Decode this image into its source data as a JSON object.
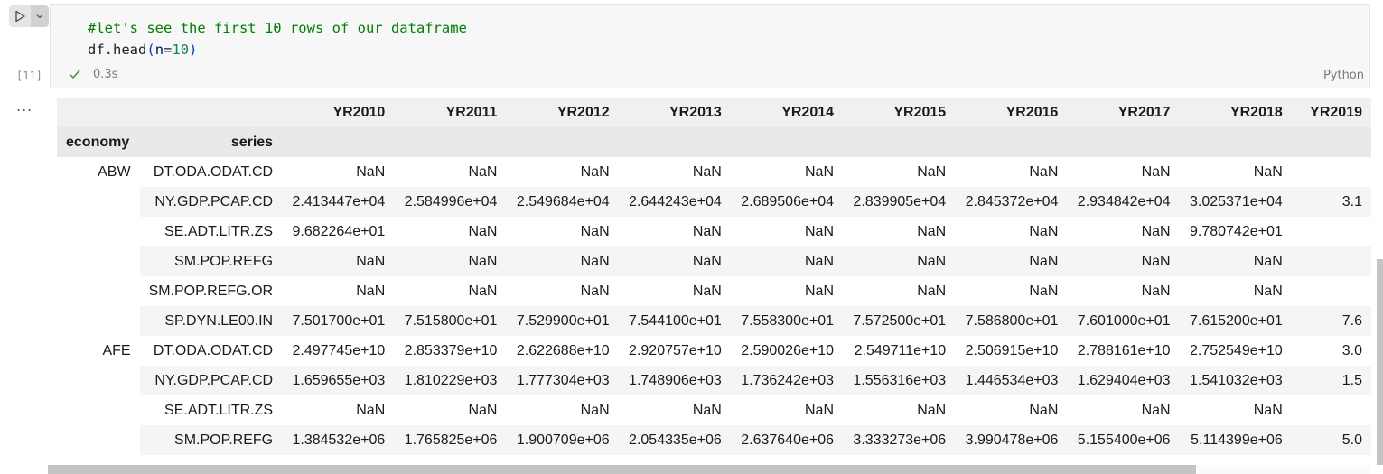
{
  "cell": {
    "execution_count": "[11]",
    "code": {
      "comment": "#let's see the first 10 rows of our dataframe",
      "obj": "df",
      "dot": ".",
      "method": "head",
      "open_paren": "(",
      "param": "n",
      "equals": "=",
      "arg": "10",
      "close_paren": ")"
    },
    "status_time": "0.3s",
    "language": "Python",
    "run_icon": "play-icon",
    "menu_icon": "chevron-down-icon",
    "status_icon": "check-icon"
  },
  "output": {
    "more_label": "...",
    "columns": [
      "YR2010",
      "YR2011",
      "YR2012",
      "YR2013",
      "YR2014",
      "YR2015",
      "YR2016",
      "YR2017",
      "YR2018",
      "YR2019"
    ],
    "index_names": [
      "economy",
      "series"
    ],
    "rows": [
      {
        "economy": "ABW",
        "series": "DT.ODA.ODAT.CD",
        "values": [
          "NaN",
          "NaN",
          "NaN",
          "NaN",
          "NaN",
          "NaN",
          "NaN",
          "NaN",
          "NaN",
          ""
        ]
      },
      {
        "economy": "",
        "series": "NY.GDP.PCAP.CD",
        "values": [
          "2.413447e+04",
          "2.584996e+04",
          "2.549684e+04",
          "2.644243e+04",
          "2.689506e+04",
          "2.839905e+04",
          "2.845372e+04",
          "2.934842e+04",
          "3.025371e+04",
          "3.1"
        ]
      },
      {
        "economy": "",
        "series": "SE.ADT.LITR.ZS",
        "values": [
          "9.682264e+01",
          "NaN",
          "NaN",
          "NaN",
          "NaN",
          "NaN",
          "NaN",
          "NaN",
          "9.780742e+01",
          ""
        ]
      },
      {
        "economy": "",
        "series": "SM.POP.REFG",
        "values": [
          "NaN",
          "NaN",
          "NaN",
          "NaN",
          "NaN",
          "NaN",
          "NaN",
          "NaN",
          "NaN",
          ""
        ]
      },
      {
        "economy": "",
        "series": "SM.POP.REFG.OR",
        "values": [
          "NaN",
          "NaN",
          "NaN",
          "NaN",
          "NaN",
          "NaN",
          "NaN",
          "NaN",
          "NaN",
          ""
        ]
      },
      {
        "economy": "",
        "series": "SP.DYN.LE00.IN",
        "values": [
          "7.501700e+01",
          "7.515800e+01",
          "7.529900e+01",
          "7.544100e+01",
          "7.558300e+01",
          "7.572500e+01",
          "7.586800e+01",
          "7.601000e+01",
          "7.615200e+01",
          "7.6"
        ]
      },
      {
        "economy": "AFE",
        "series": "DT.ODA.ODAT.CD",
        "values": [
          "2.497745e+10",
          "2.853379e+10",
          "2.622688e+10",
          "2.920757e+10",
          "2.590026e+10",
          "2.549711e+10",
          "2.506915e+10",
          "2.788161e+10",
          "2.752549e+10",
          "3.0"
        ]
      },
      {
        "economy": "",
        "series": "NY.GDP.PCAP.CD",
        "values": [
          "1.659655e+03",
          "1.810229e+03",
          "1.777304e+03",
          "1.748906e+03",
          "1.736242e+03",
          "1.556316e+03",
          "1.446534e+03",
          "1.629404e+03",
          "1.541032e+03",
          "1.5"
        ]
      },
      {
        "economy": "",
        "series": "SE.ADT.LITR.ZS",
        "values": [
          "NaN",
          "NaN",
          "NaN",
          "NaN",
          "NaN",
          "NaN",
          "NaN",
          "NaN",
          "NaN",
          ""
        ]
      },
      {
        "economy": "",
        "series": "SM.POP.REFG",
        "values": [
          "1.384532e+06",
          "1.765825e+06",
          "1.900709e+06",
          "2.054335e+06",
          "2.637640e+06",
          "3.333273e+06",
          "3.990478e+06",
          "5.155400e+06",
          "5.114399e+06",
          "5.0"
        ]
      }
    ]
  },
  "colors": {
    "comment": "#008000",
    "header_bg": "#f0f0f0",
    "index_header_bg": "#e9e9e9",
    "alt_row_bg": "#f5f5f5",
    "scrollbar": "#c4c4c4"
  }
}
